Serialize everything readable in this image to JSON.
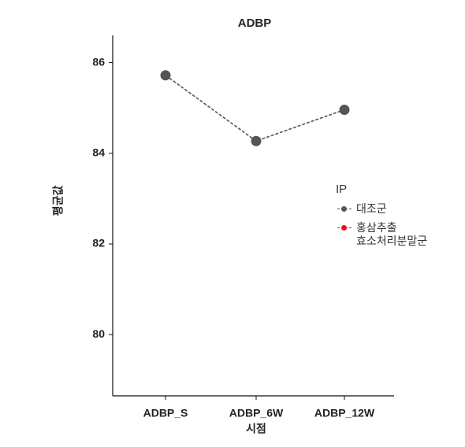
{
  "chart_data": {
    "type": "line",
    "title": "ADBP",
    "xlabel": "시점",
    "ylabel": "평균값",
    "categories": [
      "ADBP_S",
      "ADBP_6W",
      "ADBP_12W"
    ],
    "series": [
      {
        "name": "대조군",
        "color": "#555555",
        "values": [
          85.72,
          84.27,
          84.96
        ]
      },
      {
        "name": "홍삼추출\n효소처리분말군",
        "color": "#e8141c",
        "values": [
          null,
          null,
          null
        ]
      }
    ],
    "ylim": [
      78.65,
      86.6
    ],
    "yticks": [
      80,
      82,
      84,
      86
    ],
    "legend_title": "IP",
    "legend": "right",
    "grid": false
  }
}
